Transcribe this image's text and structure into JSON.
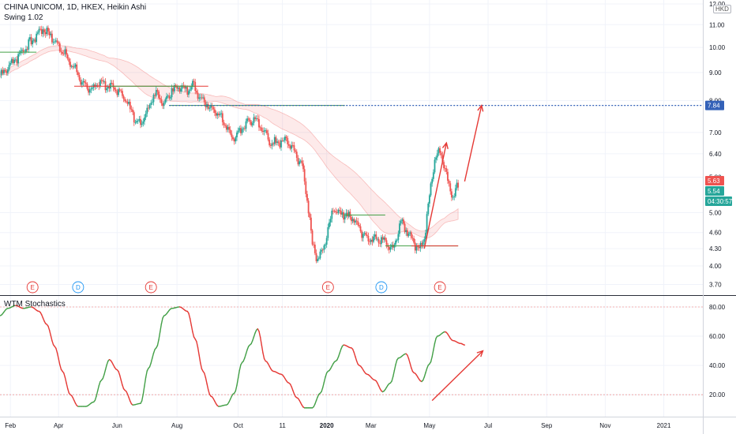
{
  "header": {
    "symbol_line": "CHINA UNICOM, 1D, HKEX, Heikin Ashi",
    "indicator_line": "Swing 1.02",
    "currency": "HKD"
  },
  "oscillator": {
    "title": "WTM Stochastics"
  },
  "colors": {
    "up": "#26a69a",
    "down": "#ef5350",
    "grid": "#f0f3fa",
    "axis_text": "#131722",
    "osc_up": "#43a047",
    "osc_down": "#e53935",
    "annotation": "#e53935",
    "target_line": "#3361b8",
    "support_red": "#e53935",
    "support_green": "#43a047"
  },
  "chart_data": [
    {
      "type": "candlestick",
      "title": "CHINA UNICOM, 1D, HKEX, Heikin Ashi",
      "y_scale": "log",
      "ylim": [
        3.55,
        12.2
      ],
      "x_tick_labels": [
        "Feb",
        "Apr",
        "Jun",
        "Aug",
        "Oct",
        "11",
        "2020",
        "Mar",
        "May",
        "Jul",
        "Sep",
        "Nov",
        "2021"
      ],
      "y_tick_labels": [
        "12.00",
        "11.00",
        "10.00",
        "9.00",
        "8.00",
        "7.00",
        "6.40",
        "5.80",
        "5.00",
        "4.60",
        "4.30",
        "4.00",
        "3.70"
      ],
      "y_ticks": [
        12.0,
        11.0,
        10.0,
        9.0,
        8.0,
        7.0,
        6.4,
        5.8,
        5.0,
        4.6,
        4.3,
        4.0,
        3.7
      ],
      "price_labels": [
        {
          "text": "7.84",
          "value": 7.84,
          "color": "#3361b8"
        },
        {
          "text": "5.63",
          "value": 5.63,
          "color": "#ef5350"
        },
        {
          "text": "5.54",
          "value": 5.54,
          "color": "#26a69a"
        },
        {
          "text": "04:30:57",
          "value": 5.28,
          "color": "#26a69a"
        }
      ],
      "target_price": 7.84,
      "anchors": [
        [
          0,
          8.9
        ],
        [
          8,
          9.3
        ],
        [
          18,
          9.9
        ],
        [
          25,
          10.3
        ],
        [
          32,
          10.8
        ],
        [
          38,
          10.6
        ],
        [
          44,
          10.1
        ],
        [
          50,
          9.7
        ],
        [
          57,
          9.2
        ],
        [
          63,
          8.6
        ],
        [
          70,
          8.4
        ],
        [
          78,
          8.6
        ],
        [
          85,
          8.5
        ],
        [
          92,
          8.3
        ],
        [
          98,
          7.9
        ],
        [
          104,
          7.4
        ],
        [
          108,
          7.2
        ],
        [
          114,
          7.8
        ],
        [
          120,
          8.3
        ],
        [
          126,
          7.9
        ],
        [
          132,
          8.4
        ],
        [
          138,
          8.5
        ],
        [
          144,
          8.3
        ],
        [
          148,
          8.6
        ],
        [
          154,
          8.1
        ],
        [
          160,
          7.8
        ],
        [
          166,
          7.6
        ],
        [
          172,
          7.3
        ],
        [
          178,
          6.8
        ],
        [
          184,
          7.0
        ],
        [
          190,
          7.3
        ],
        [
          196,
          7.4
        ],
        [
          202,
          7.1
        ],
        [
          208,
          6.7
        ],
        [
          214,
          6.7
        ],
        [
          220,
          6.8
        ],
        [
          226,
          6.5
        ],
        [
          232,
          6.1
        ],
        [
          236,
          5.3
        ],
        [
          240,
          4.4
        ],
        [
          244,
          4.1
        ],
        [
          248,
          4.3
        ],
        [
          252,
          4.6
        ],
        [
          256,
          5.1
        ],
        [
          260,
          5.0
        ],
        [
          266,
          4.95
        ],
        [
          272,
          4.85
        ],
        [
          278,
          4.6
        ],
        [
          284,
          4.45
        ],
        [
          290,
          4.5
        ],
        [
          296,
          4.4
        ],
        [
          302,
          4.3
        ],
        [
          308,
          4.8
        ],
        [
          314,
          4.6
        ],
        [
          318,
          4.4
        ],
        [
          322,
          4.3
        ],
        [
          326,
          4.5
        ],
        [
          330,
          5.4
        ],
        [
          334,
          6.2
        ],
        [
          337,
          6.5
        ],
        [
          341,
          6.1
        ],
        [
          345,
          5.6
        ],
        [
          348,
          5.35
        ],
        [
          351,
          5.55
        ]
      ],
      "overlays": {
        "support_lines": [
          {
            "color": "red",
            "value": 8.5,
            "x_range": [
              57,
              160
            ]
          },
          {
            "color": "green",
            "value": 8.5,
            "x_range": [
              85,
              150
            ]
          },
          {
            "color": "green",
            "value": 7.84,
            "x_range": [
              130,
              265
            ]
          },
          {
            "color": "green",
            "value": 9.8,
            "x_range": [
              0,
              28
            ]
          },
          {
            "color": "green",
            "value": 4.95,
            "x_range": [
              264,
              296
            ]
          },
          {
            "color": "green",
            "value": 4.35,
            "x_range": [
              296,
              352
            ]
          },
          {
            "color": "red",
            "value": 4.35,
            "x_range": [
              316,
              352
            ]
          }
        ],
        "event_markers": [
          {
            "label": "E",
            "x": 25,
            "color": "#e53935"
          },
          {
            "label": "D",
            "x": 60,
            "color": "#2196f3"
          },
          {
            "label": "E",
            "x": 116,
            "color": "#e53935"
          },
          {
            "label": "E",
            "x": 252,
            "color": "#e53935"
          },
          {
            "label": "D",
            "x": 293,
            "color": "#2196f3"
          },
          {
            "label": "E",
            "x": 338,
            "color": "#e53935"
          }
        ],
        "arrows": [
          {
            "from": [
              326,
              4.3
            ],
            "to": [
              343,
              6.7
            ]
          },
          {
            "from": [
              357,
              5.7
            ],
            "to": [
              370,
              7.84
            ]
          }
        ]
      }
    },
    {
      "type": "line",
      "title": "WTM Stochastics",
      "ylim": [
        5,
        87
      ],
      "y_tick_labels": [
        "80.00",
        "60.00",
        "40.00",
        "20.00"
      ],
      "y_ticks": [
        80,
        60,
        40,
        20
      ],
      "levels": [
        80,
        20
      ],
      "series": [
        {
          "x": [
            0,
            6,
            12,
            18,
            24,
            30,
            36,
            42,
            48,
            54,
            60,
            66,
            72,
            78,
            84,
            90,
            96,
            102,
            108,
            114,
            120,
            126,
            132,
            138,
            144,
            150,
            156,
            162,
            168,
            174,
            180,
            186,
            192,
            198,
            204,
            210,
            216,
            222,
            228,
            234,
            240,
            246,
            252,
            258,
            264,
            270,
            276,
            282,
            288,
            294,
            300,
            306,
            312,
            318,
            324,
            330,
            336,
            342,
            348,
            354,
            357
          ],
          "values": [
            74,
            79,
            81,
            79,
            80,
            77,
            68,
            53,
            36,
            20,
            12,
            12,
            15,
            30,
            44,
            37,
            23,
            13,
            14,
            38,
            52,
            74,
            79,
            80,
            77,
            58,
            36,
            19,
            12,
            13,
            21,
            42,
            54,
            65,
            43,
            36,
            34,
            28,
            18,
            11,
            11,
            21,
            36,
            43,
            54,
            52,
            40,
            34,
            30,
            22,
            28,
            45,
            48,
            35,
            29,
            41,
            60,
            63,
            57,
            55,
            54
          ]
        }
      ],
      "arrows": [
        {
          "from": [
            332,
            16
          ],
          "to": [
            371,
            50
          ]
        }
      ]
    }
  ]
}
